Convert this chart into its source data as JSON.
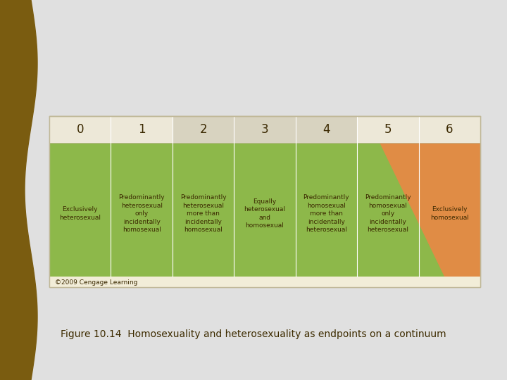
{
  "title": "Figure 10.14  Homosexuality and heterosexuality as endpoints on a continuum",
  "title_fontsize": 10,
  "title_color": "#3d2b00",
  "bg_color": "#e0e0e0",
  "panel_bg": "#f2edd8",
  "dark_sidebar_color": "#7a5c10",
  "numbers": [
    "0",
    "1",
    "2",
    "3",
    "4",
    "5",
    "6"
  ],
  "labels": [
    "Exclusively\nheterosexual",
    "Predominantly\nheterosexual\nonly\nincidentally\nhomosexual",
    "Predominantly\nheterosexual\nmore than\nincidentally\nhomosexual",
    "Equally\nheterosexual\nand\nhomosexual",
    "Predominantly\nhomosexual\nmore than\nincidentally\nheterosexual",
    "Predominantly\nhomosexual\nonly\nincidentally\nheterosexual",
    "Exclusively\nhomosexual"
  ],
  "green_color": "#8db84a",
  "orange_color": "#e08c45",
  "number_bg_light": "#ede8d8",
  "number_bg_dark": "#d8d3c0",
  "copyright_text": "©2009 Cengage Learning",
  "copyright_fontsize": 6.5,
  "label_fontsize": 6.5,
  "number_fontsize": 12,
  "text_color": "#3a2800"
}
